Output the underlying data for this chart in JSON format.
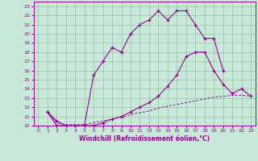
{
  "xlabel": "Windchill (Refroidissement éolien,°C)",
  "bg_color": "#c8e8d8",
  "line_color": "#990099",
  "xlim": [
    -0.5,
    23.5
  ],
  "ylim": [
    10,
    23.5
  ],
  "xticks": [
    0,
    1,
    2,
    3,
    4,
    5,
    6,
    7,
    8,
    9,
    10,
    11,
    12,
    13,
    14,
    15,
    16,
    17,
    18,
    19,
    20,
    21,
    22,
    23
  ],
  "yticks": [
    10,
    11,
    12,
    13,
    14,
    15,
    16,
    17,
    18,
    19,
    20,
    21,
    22,
    23
  ],
  "line1_x": [
    1,
    2,
    3,
    4,
    5,
    6,
    7,
    8,
    9,
    10,
    11,
    12,
    13,
    14,
    15,
    16,
    17,
    18,
    19,
    20
  ],
  "line1_y": [
    11.5,
    10.5,
    10.0,
    10.0,
    10.0,
    15.5,
    17.0,
    18.5,
    18.0,
    20.0,
    21.0,
    21.5,
    22.5,
    21.5,
    22.5,
    22.5,
    21.0,
    19.5,
    19.5,
    16.0
  ],
  "line2_x": [
    1,
    2,
    3,
    4,
    5,
    6,
    7,
    8,
    9,
    10,
    11,
    12,
    13,
    14,
    15,
    16,
    17,
    18,
    19,
    20,
    21,
    22,
    23
  ],
  "line2_y": [
    11.5,
    10.3,
    10.1,
    10.1,
    10.1,
    10.3,
    10.5,
    10.7,
    10.9,
    11.2,
    11.4,
    11.6,
    11.9,
    12.1,
    12.3,
    12.5,
    12.7,
    12.9,
    13.1,
    13.2,
    13.3,
    13.3,
    13.2
  ],
  "line3_x": [
    1,
    2,
    3,
    4,
    5,
    6,
    7,
    8,
    9,
    10,
    11,
    12,
    13,
    14,
    15,
    16,
    17,
    18,
    19,
    20,
    21,
    22,
    23
  ],
  "line3_y": [
    11.5,
    10.0,
    10.0,
    9.8,
    10.0,
    10.0,
    10.3,
    10.7,
    11.0,
    11.5,
    12.0,
    12.5,
    13.2,
    14.3,
    15.5,
    17.5,
    18.0,
    18.0,
    16.0,
    14.5,
    13.5,
    14.0,
    13.2
  ]
}
